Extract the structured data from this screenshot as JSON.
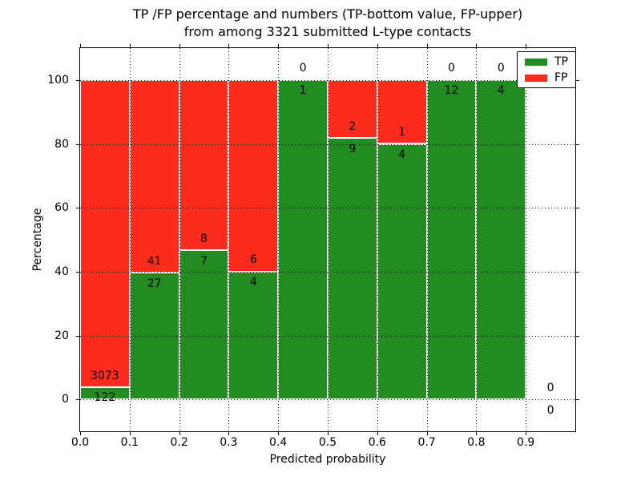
{
  "chart_data": {
    "type": "bar",
    "stacked": true,
    "title": "TP /FP percentage and numbers (TP-bottom value, FP-upper) from among 3321 submitted L-type contacts",
    "title_line1": "TP /FP percentage and numbers (TP-bottom value, FP-upper)",
    "title_line2": "from among 3321 submitted L-type contacts",
    "xlabel": "Predicted probability",
    "ylabel": "Percentage",
    "xlim": [
      0.0,
      1.0
    ],
    "ylim": [
      -10,
      110
    ],
    "xtick_labels": [
      "0.0",
      "0.1",
      "0.2",
      "0.3",
      "0.4",
      "0.5",
      "0.6",
      "0.7",
      "0.8",
      "0.9"
    ],
    "ytick_labels": [
      "0",
      "20",
      "40",
      "60",
      "80",
      "100"
    ],
    "ytick_values": [
      0,
      20,
      40,
      60,
      80,
      100
    ],
    "grid": "dotted, black, both axes, drawn above bars",
    "bar_width": 0.1,
    "value_semantics": "each bin stacked to 100%; green TP share = tp/(tp+fp), red FP share = fp/(tp+fp); printed numbers are raw counts (TP bottom, FP upper)",
    "total_contacts": 3321,
    "legend": {
      "position": "upper-right",
      "entries": [
        {
          "name": "TP",
          "color_key": "tp"
        },
        {
          "name": "FP",
          "color_key": "fp"
        }
      ]
    },
    "bins": [
      {
        "range": [
          0.0,
          0.1
        ],
        "tp": 122,
        "fp": 3073
      },
      {
        "range": [
          0.1,
          0.2
        ],
        "tp": 27,
        "fp": 41
      },
      {
        "range": [
          0.2,
          0.3
        ],
        "tp": 7,
        "fp": 8
      },
      {
        "range": [
          0.3,
          0.4
        ],
        "tp": 4,
        "fp": 6
      },
      {
        "range": [
          0.4,
          0.5
        ],
        "tp": 1,
        "fp": 0
      },
      {
        "range": [
          0.5,
          0.6
        ],
        "tp": 9,
        "fp": 2
      },
      {
        "range": [
          0.6,
          0.7
        ],
        "tp": 4,
        "fp": 1
      },
      {
        "range": [
          0.7,
          0.8
        ],
        "tp": 12,
        "fp": 0
      },
      {
        "range": [
          0.8,
          0.9
        ],
        "tp": 4,
        "fp": 0
      },
      {
        "range": [
          0.9,
          1.0
        ],
        "tp": 0,
        "fp": 0
      }
    ]
  },
  "colors": {
    "tp": "#228b22",
    "fp": "#fb2b1d",
    "axis": "#000000",
    "text": "#000000",
    "background": "#ffffff",
    "bar_edge": "#ffffff"
  }
}
